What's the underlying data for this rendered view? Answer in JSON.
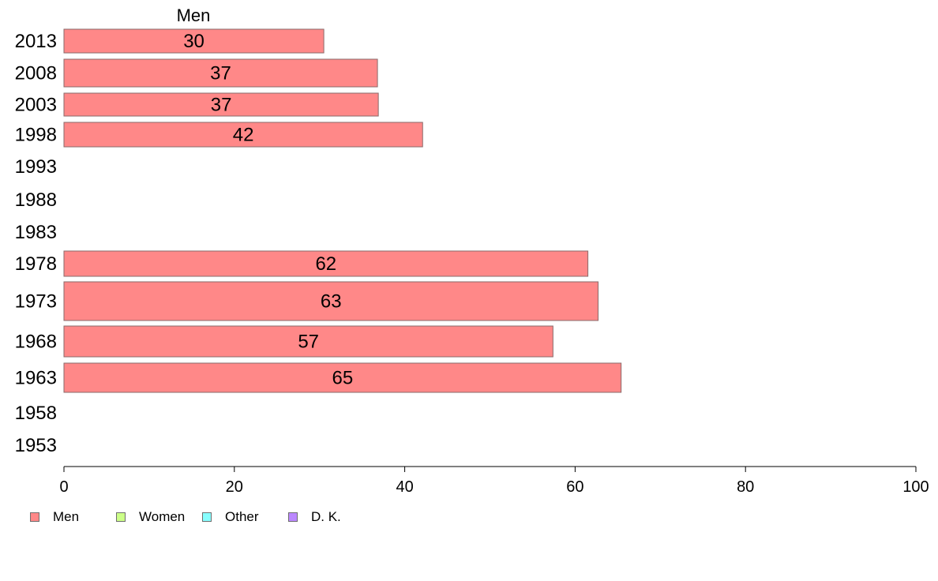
{
  "chart_data": {
    "type": "bar",
    "orientation": "horizontal",
    "series_header": "Men",
    "categories": [
      "2013",
      "2008",
      "2003",
      "1998",
      "1993",
      "1988",
      "1983",
      "1978",
      "1973",
      "1968",
      "1963",
      "1958",
      "1953"
    ],
    "series": [
      {
        "name": "Men",
        "color": "#ff8888",
        "values": [
          30.5,
          36.8,
          36.9,
          42.1,
          null,
          null,
          null,
          61.5,
          62.7,
          57.4,
          65.4,
          null,
          null
        ],
        "labels": [
          "30",
          "37",
          "37",
          "42",
          "",
          "",
          "",
          "62",
          "63",
          "57",
          "65",
          "",
          ""
        ]
      }
    ],
    "xlim": [
      0,
      100
    ],
    "xticks": [
      "0",
      "20",
      "40",
      "60",
      "80",
      "100"
    ],
    "grid": false,
    "legend": {
      "placement": "bottom-left",
      "items": [
        {
          "label": "Men",
          "color": "#ff8888"
        },
        {
          "label": "Women",
          "color": "#ccff88"
        },
        {
          "label": "Other",
          "color": "#88ffff"
        },
        {
          "label": "D. K.",
          "color": "#bb88ff"
        }
      ]
    }
  }
}
